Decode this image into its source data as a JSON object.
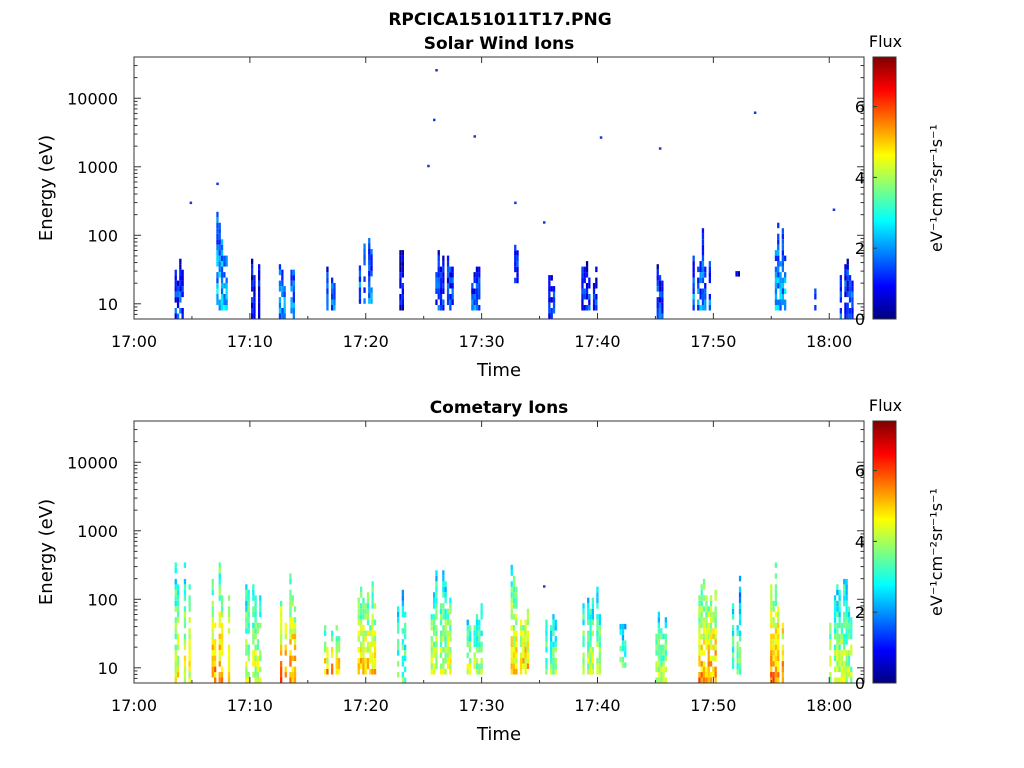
{
  "figure_title": "RPCICA151011T17.PNG",
  "colorbar_range": [
    0,
    7.4
  ],
  "colorbar_ticks": [
    "0",
    "2",
    "4",
    "6"
  ],
  "colorbar_title": "Flux",
  "colorbar_unit": "eV⁻¹cm⁻²sr⁻¹s⁻¹",
  "chart_data": [
    {
      "type": "heatmap",
      "title": "Solar Wind Ions",
      "xlabel": "Time",
      "ylabel": "Energy (eV)",
      "x_ticks": [
        "17:00",
        "17:10",
        "17:20",
        "17:30",
        "17:40",
        "17:50",
        "18:00"
      ],
      "y_ticks": [
        "10",
        "100",
        "1000",
        "10000"
      ],
      "y_scale": "log",
      "xlim_minutes_after_17": [
        0,
        63
      ],
      "ylim": [
        6,
        40000
      ],
      "colorbar_label": "Flux",
      "sparse_points": [
        [
          26,
          25000
        ],
        [
          25.8,
          4700
        ],
        [
          29.3,
          2700
        ],
        [
          25.3,
          1000
        ],
        [
          40.2,
          2600
        ],
        [
          45.3,
          1800
        ],
        [
          53.5,
          6000
        ],
        [
          32.8,
          290
        ],
        [
          35.3,
          150
        ],
        [
          4.8,
          290
        ],
        [
          7.1,
          550
        ],
        [
          60.3,
          230
        ]
      ],
      "activity_bursts": [
        {
          "t": 4.0,
          "width": 1.0,
          "emin": 6,
          "emax": 70,
          "level": 1.4
        },
        {
          "t": 7.5,
          "width": 1.2,
          "emin": 8,
          "emax": 230,
          "level": 2.4
        },
        {
          "t": 10.5,
          "width": 0.8,
          "emin": 6,
          "emax": 45,
          "level": 1.0
        },
        {
          "t": 13.2,
          "width": 1.4,
          "emin": 6,
          "emax": 45,
          "level": 2.0
        },
        {
          "t": 17.0,
          "width": 1.2,
          "emin": 8,
          "emax": 35,
          "level": 1.8
        },
        {
          "t": 20.0,
          "width": 1.2,
          "emin": 10,
          "emax": 130,
          "level": 1.8
        },
        {
          "t": 23.0,
          "width": 0.6,
          "emin": 8,
          "emax": 55,
          "level": 0.8
        },
        {
          "t": 26.8,
          "width": 1.6,
          "emin": 8,
          "emax": 70,
          "level": 1.4
        },
        {
          "t": 29.5,
          "width": 0.8,
          "emin": 8,
          "emax": 35,
          "level": 1.6
        },
        {
          "t": 33.2,
          "width": 0.8,
          "emin": 20,
          "emax": 80,
          "level": 1.4
        },
        {
          "t": 36.0,
          "width": 0.5,
          "emin": 6,
          "emax": 30,
          "level": 1.4
        },
        {
          "t": 39.2,
          "width": 1.6,
          "emin": 8,
          "emax": 40,
          "level": 1.2
        },
        {
          "t": 45.4,
          "width": 0.6,
          "emin": 6,
          "emax": 35,
          "level": 1.4
        },
        {
          "t": 49.0,
          "width": 1.6,
          "emin": 8,
          "emax": 150,
          "level": 1.8
        },
        {
          "t": 52.0,
          "width": 0.6,
          "emin": 25,
          "emax": 35,
          "level": 1.0
        },
        {
          "t": 55.8,
          "width": 1.0,
          "emin": 8,
          "emax": 180,
          "level": 2.2
        },
        {
          "t": 58.7,
          "width": 0.4,
          "emin": 8,
          "emax": 35,
          "level": 1.2
        },
        {
          "t": 61.5,
          "width": 1.2,
          "emin": 6,
          "emax": 100,
          "level": 1.4
        }
      ]
    },
    {
      "type": "heatmap",
      "title": "Cometary Ions",
      "xlabel": "Time",
      "ylabel": "Energy (eV)",
      "x_ticks": [
        "17:00",
        "17:10",
        "17:20",
        "17:30",
        "17:40",
        "17:50",
        "18:00"
      ],
      "y_ticks": [
        "10",
        "100",
        "1000",
        "10000"
      ],
      "y_scale": "log",
      "xlim_minutes_after_17": [
        0,
        63
      ],
      "ylim": [
        6,
        40000
      ],
      "colorbar_label": "Flux",
      "sparse_points": [
        [
          35.3,
          150
        ]
      ],
      "activity_bursts": [
        {
          "t": 4.2,
          "width": 1.4,
          "emin": 6,
          "emax": 420,
          "level": 4.6
        },
        {
          "t": 7.6,
          "width": 1.8,
          "emin": 6,
          "emax": 350,
          "level": 5.4
        },
        {
          "t": 10.3,
          "width": 1.4,
          "emin": 6,
          "emax": 250,
          "level": 4.4
        },
        {
          "t": 13.5,
          "width": 1.8,
          "emin": 6,
          "emax": 250,
          "level": 5.6
        },
        {
          "t": 17.2,
          "width": 1.6,
          "emin": 8,
          "emax": 45,
          "level": 5.2
        },
        {
          "t": 20.2,
          "width": 1.8,
          "emin": 8,
          "emax": 230,
          "level": 5.0
        },
        {
          "t": 23.0,
          "width": 1.0,
          "emin": 6,
          "emax": 350,
          "level": 3.6
        },
        {
          "t": 26.5,
          "width": 1.8,
          "emin": 8,
          "emax": 320,
          "level": 4.4
        },
        {
          "t": 29.4,
          "width": 1.4,
          "emin": 8,
          "emax": 120,
          "level": 4.0
        },
        {
          "t": 33.2,
          "width": 1.8,
          "emin": 8,
          "emax": 320,
          "level": 5.0
        },
        {
          "t": 36.0,
          "width": 1.0,
          "emin": 8,
          "emax": 100,
          "level": 3.8
        },
        {
          "t": 39.6,
          "width": 1.8,
          "emin": 8,
          "emax": 180,
          "level": 4.2
        },
        {
          "t": 42.2,
          "width": 0.6,
          "emin": 10,
          "emax": 60,
          "level": 3.6
        },
        {
          "t": 45.5,
          "width": 1.0,
          "emin": 6,
          "emax": 90,
          "level": 4.2
        },
        {
          "t": 49.6,
          "width": 1.8,
          "emin": 6,
          "emax": 220,
          "level": 5.4
        },
        {
          "t": 52.0,
          "width": 0.8,
          "emin": 8,
          "emax": 200,
          "level": 3.6
        },
        {
          "t": 55.8,
          "width": 1.8,
          "emin": 6,
          "emax": 300,
          "level": 5.6
        },
        {
          "t": 61.0,
          "width": 2.0,
          "emin": 6,
          "emax": 340,
          "level": 4.2
        }
      ]
    }
  ]
}
